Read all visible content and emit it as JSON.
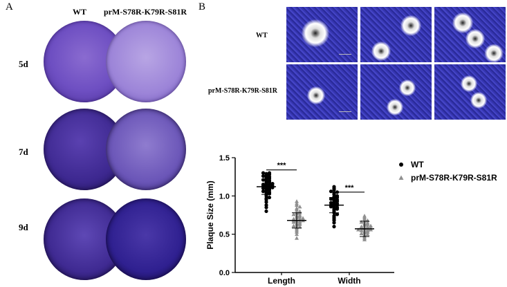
{
  "panel_a": {
    "letter": "A",
    "columns": [
      "WT",
      "prM-S78R-K79R-S81R"
    ],
    "rows": [
      "5d",
      "7d",
      "9d"
    ]
  },
  "panel_b": {
    "letter": "B",
    "row_labels": [
      "WT",
      "prM-S78R-K79R-S81R"
    ]
  },
  "chart_data": {
    "type": "scatter",
    "categories": [
      "Length",
      "Width"
    ],
    "ylabel": "Plaque Size (mm)",
    "ylim": [
      0.0,
      1.5
    ],
    "yticks": [
      "0.0",
      "0.5",
      "1.0",
      "1.5"
    ],
    "series": [
      {
        "name": "WT",
        "color": "#000000",
        "marker": "circle",
        "means": [
          1.12,
          0.88
        ],
        "values": {
          "Length": [
            0.8,
            0.85,
            0.88,
            0.92,
            0.95,
            0.97,
            0.98,
            1.0,
            1.02,
            1.03,
            1.04,
            1.05,
            1.06,
            1.07,
            1.08,
            1.09,
            1.1,
            1.1,
            1.11,
            1.12,
            1.12,
            1.13,
            1.13,
            1.14,
            1.15,
            1.15,
            1.16,
            1.17,
            1.18,
            1.19,
            1.2,
            1.21,
            1.22,
            1.23,
            1.24,
            1.25,
            1.26,
            1.27,
            1.28,
            1.29,
            1.3,
            1.3
          ],
          "Width": [
            0.6,
            0.65,
            0.68,
            0.7,
            0.72,
            0.74,
            0.76,
            0.78,
            0.8,
            0.82,
            0.83,
            0.84,
            0.85,
            0.86,
            0.87,
            0.88,
            0.88,
            0.89,
            0.9,
            0.91,
            0.92,
            0.93,
            0.94,
            0.95,
            0.96,
            0.97,
            0.98,
            0.99,
            1.0,
            1.02,
            1.04,
            1.05,
            1.06,
            1.08,
            1.1,
            1.12
          ]
        }
      },
      {
        "name": "prM-S78R-K79R-S81R",
        "color": "#909090",
        "marker": "triangle",
        "means": [
          0.68,
          0.57
        ],
        "values": {
          "Length": [
            0.45,
            0.5,
            0.53,
            0.55,
            0.57,
            0.59,
            0.6,
            0.61,
            0.62,
            0.63,
            0.64,
            0.65,
            0.66,
            0.67,
            0.67,
            0.68,
            0.68,
            0.69,
            0.7,
            0.7,
            0.71,
            0.72,
            0.73,
            0.74,
            0.75,
            0.76,
            0.77,
            0.78,
            0.79,
            0.8,
            0.82,
            0.84,
            0.86,
            0.88,
            0.9,
            0.93
          ],
          "Width": [
            0.43,
            0.45,
            0.47,
            0.49,
            0.5,
            0.51,
            0.52,
            0.53,
            0.54,
            0.55,
            0.55,
            0.56,
            0.56,
            0.57,
            0.57,
            0.58,
            0.58,
            0.59,
            0.6,
            0.6,
            0.61,
            0.62,
            0.63,
            0.64,
            0.65,
            0.66,
            0.67,
            0.68,
            0.7,
            0.72,
            0.74
          ]
        }
      }
    ],
    "significance": [
      "***",
      "***"
    ],
    "legend": [
      "WT",
      "prM-S78R-K79R-S81R"
    ],
    "legend_placement": "right"
  }
}
